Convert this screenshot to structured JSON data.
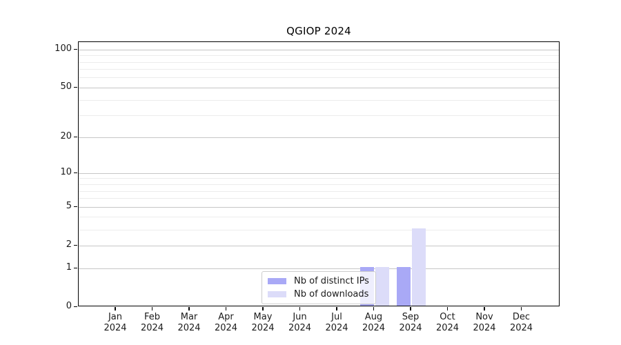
{
  "chart_data": {
    "type": "bar",
    "title": "QGIOP 2024",
    "categories": [
      "Jan",
      "Feb",
      "Mar",
      "Apr",
      "May",
      "Jun",
      "Jul",
      "Aug",
      "Sep",
      "Oct",
      "Nov",
      "Dec"
    ],
    "category_year": "2024",
    "series": [
      {
        "name": "Nb of distinct IPs",
        "color": "#a9a9f6",
        "values": [
          0,
          0,
          0,
          0,
          0,
          0,
          0,
          1,
          1,
          0,
          0,
          0
        ]
      },
      {
        "name": "Nb of downloads",
        "color": "#dcdcf9",
        "values": [
          0,
          0,
          0,
          0,
          0,
          0,
          0,
          1,
          3,
          0,
          0,
          0
        ]
      }
    ],
    "xlabel": "",
    "ylabel": "",
    "yscale": "log1p",
    "ylim": [
      0,
      115
    ],
    "yticks_major": [
      0,
      1,
      2,
      5,
      10,
      20,
      50,
      100
    ],
    "yticks_minor": [
      3,
      4,
      6,
      7,
      8,
      9,
      30,
      40,
      60,
      70,
      80,
      90
    ],
    "grid": "horizontal",
    "legend_position": "inside-lower-center",
    "colors": {
      "major_grid": "#c6c6c6",
      "minor_grid": "#ececec",
      "spine": "#000000",
      "text": "#1a1a1a",
      "background": "#ffffff"
    }
  }
}
